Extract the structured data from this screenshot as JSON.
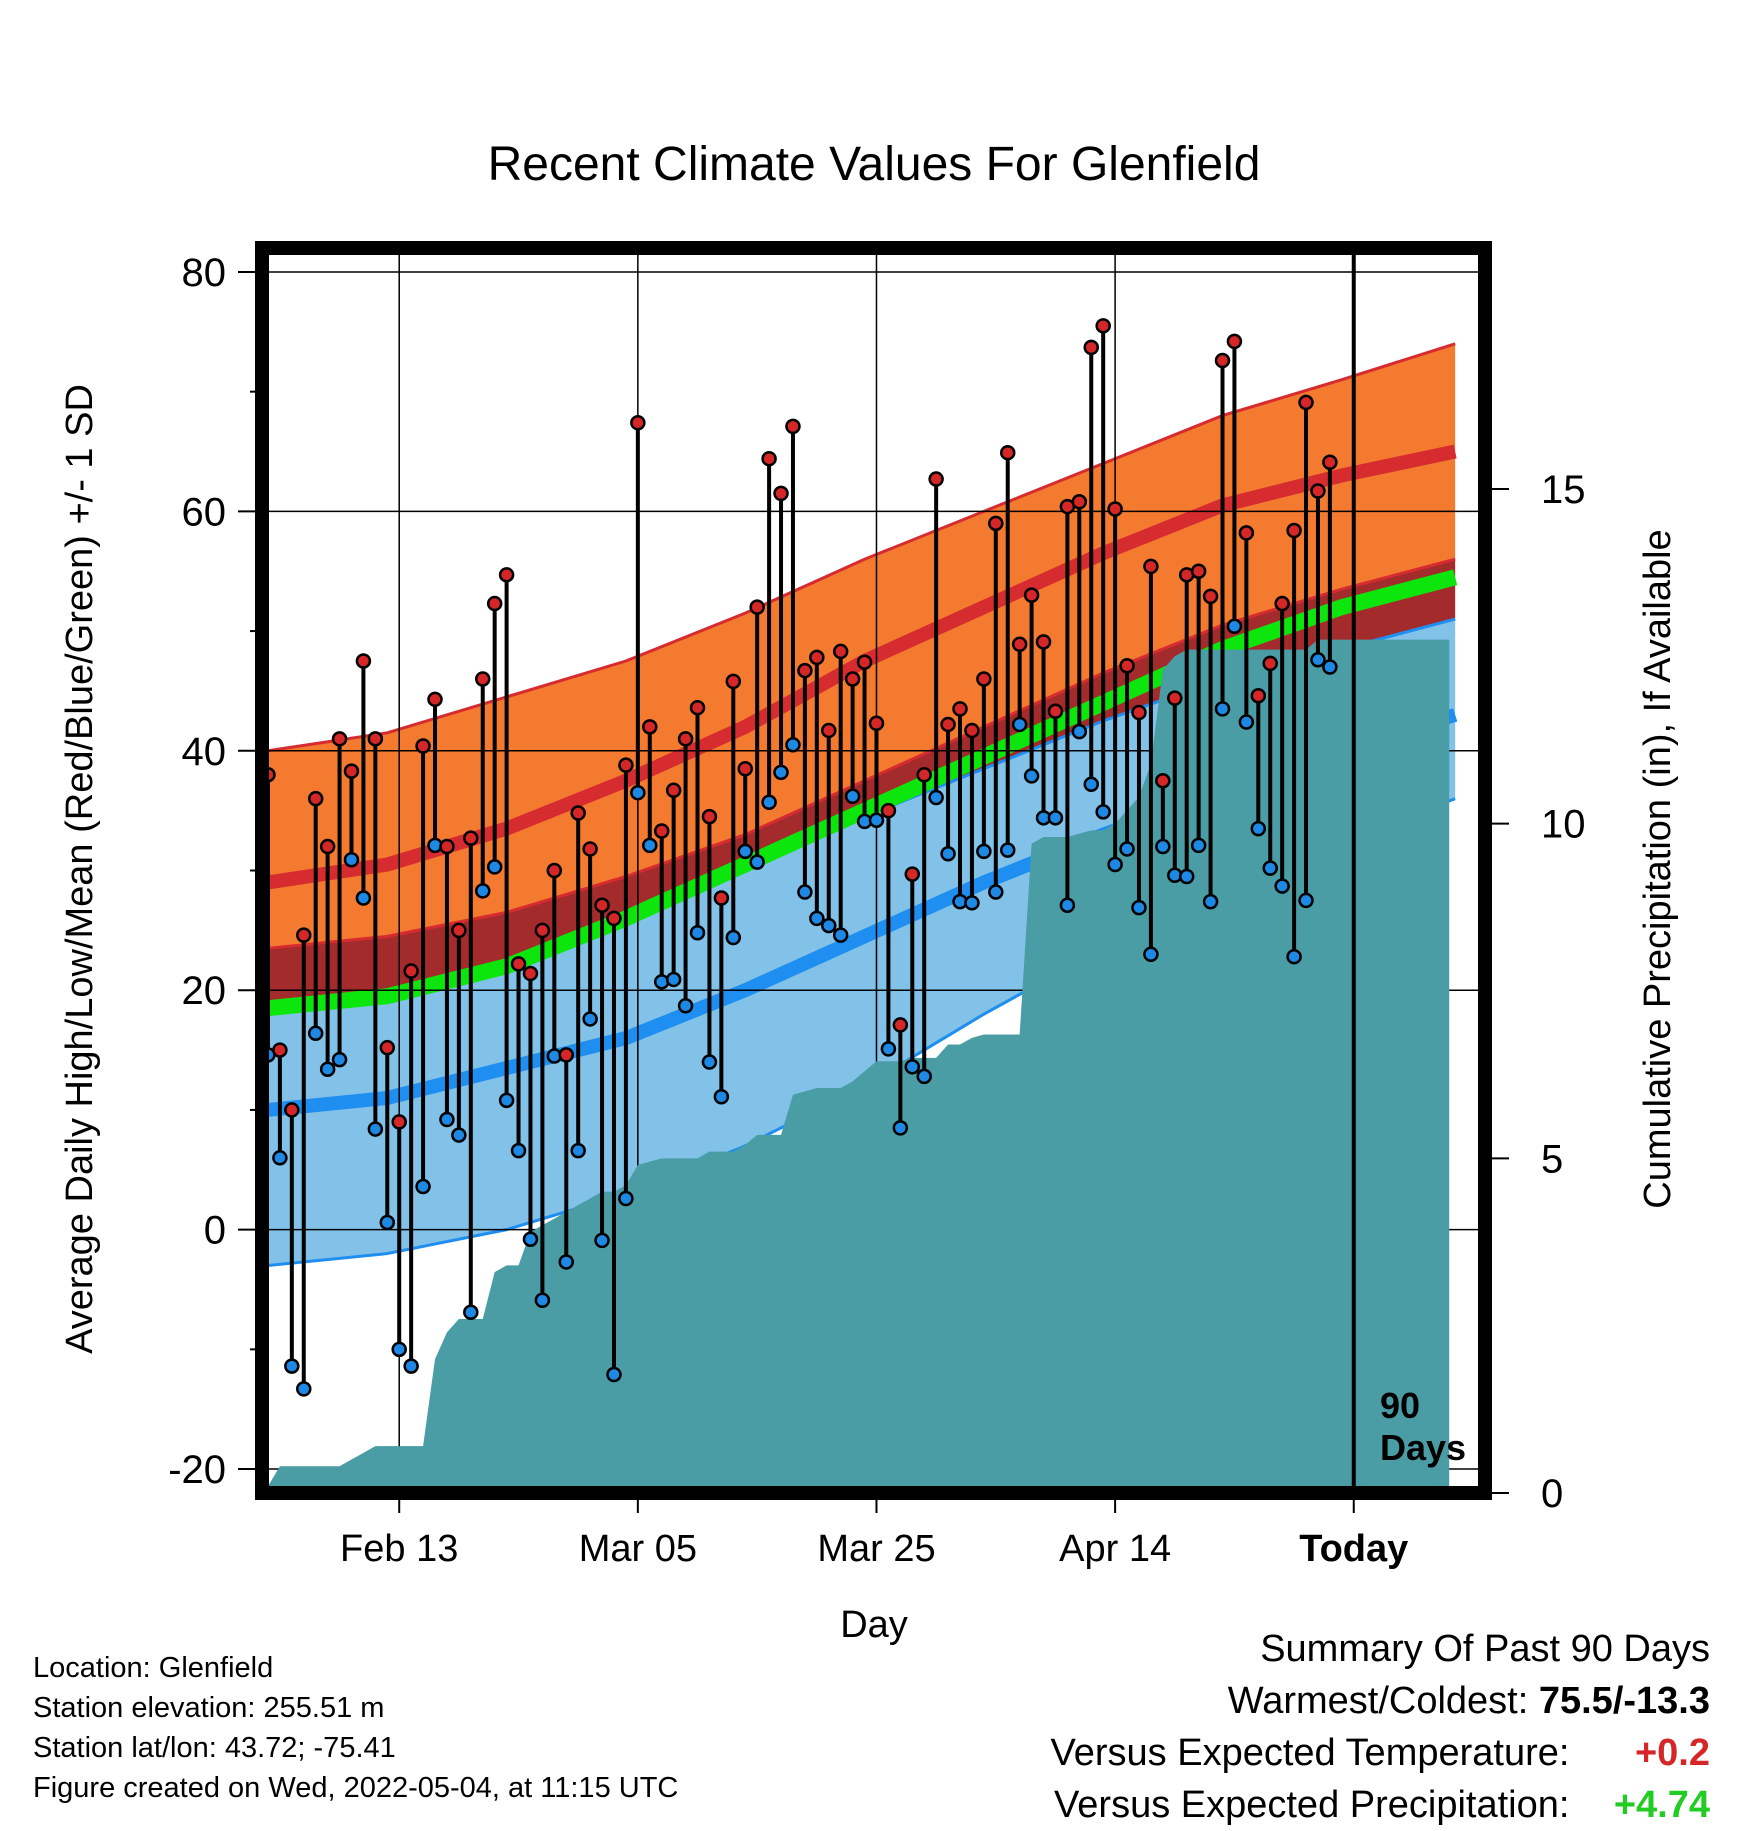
{
  "chart_data": {
    "type": "line",
    "title": "Recent Climate Values For Glenfield",
    "xlabel": "Day",
    "ylabel": "Average Daily High/Low/Mean (Red/Blue/Green) +/- 1 SD",
    "y2label": "Cumulative Precipitation (in), If Available",
    "ylim": [
      -22,
      82
    ],
    "y2lim": [
      0,
      18.6
    ],
    "xlim": [
      -0.5,
      102
    ],
    "grid": true,
    "x_ticks": [
      {
        "day": 11,
        "label": "Feb 13"
      },
      {
        "day": 31,
        "label": "Mar 05"
      },
      {
        "day": 51,
        "label": "Mar 25"
      },
      {
        "day": 71,
        "label": "Apr 14"
      },
      {
        "day": 91,
        "label": "Today"
      }
    ],
    "y_ticks": [
      -20,
      0,
      20,
      40,
      60,
      80
    ],
    "y2_ticks": [
      0,
      5,
      10,
      15
    ],
    "today_marker": {
      "day": 91,
      "label_line1": "90",
      "label_line2": "Days"
    },
    "normals": {
      "x": [
        0,
        10,
        20,
        30,
        40,
        50,
        60,
        70,
        80,
        90,
        99.5
      ],
      "high_mean": [
        29,
        30.5,
        33.5,
        37.5,
        42,
        47.5,
        52,
        56.5,
        60.5,
        63,
        65
      ],
      "high_upper": [
        40,
        41.5,
        44.5,
        47.5,
        51.5,
        56,
        60,
        64,
        68,
        71,
        74
      ],
      "high_lower": [
        23.5,
        24.5,
        26.5,
        29.5,
        33,
        37.5,
        42,
        46.5,
        50.5,
        53.5,
        56
      ],
      "mean": [
        18.5,
        19.5,
        22,
        26,
        30.5,
        35,
        39.5,
        44,
        48.5,
        52,
        54.5
      ],
      "low_mean": [
        10,
        11,
        13.5,
        16,
        20,
        24.5,
        29,
        33,
        36.5,
        40,
        43
      ],
      "low_upper": [
        18.5,
        20,
        22.5,
        26,
        30.5,
        34.5,
        38.5,
        42.5,
        46,
        48.5,
        51
      ],
      "low_lower": [
        -3,
        -2,
        0,
        3,
        7,
        12,
        18,
        23.5,
        28,
        32.5,
        36
      ]
    },
    "series": [
      {
        "name": "High",
        "color": "#d62728",
        "values": [
          38,
          15,
          10,
          24.6,
          36,
          32,
          41,
          38.3,
          47.5,
          41,
          15.2,
          9,
          21.6,
          40.4,
          44.3,
          32,
          25,
          32.7,
          46,
          52.3,
          54.7,
          22.2,
          21.4,
          25,
          30,
          14.6,
          34.8,
          31.8,
          27.1,
          26,
          38.8,
          67.4,
          42,
          33.3,
          36.7,
          41,
          43.6,
          34.5,
          27.7,
          45.8,
          38.5,
          52,
          64.4,
          61.5,
          67.1,
          46.7,
          47.8,
          41.7,
          48.3,
          46,
          47.4,
          42.3,
          35,
          17.1,
          29.7,
          38,
          62.7,
          42.2,
          43.5,
          41.7,
          46,
          59,
          64.9,
          48.9,
          53,
          49.1,
          43.3,
          60.4,
          60.8,
          73.7,
          75.5,
          60.2,
          47.1,
          43.2,
          55.4,
          37.5,
          44.4,
          54.7,
          55,
          52.9,
          72.6,
          74.2,
          58.2,
          44.6,
          47.3,
          52.3,
          58.4,
          69.1,
          61.7,
          64.1
        ]
      },
      {
        "name": "Low",
        "color": "#1e88e5",
        "values": [
          14.6,
          6,
          -11.4,
          -13.3,
          16.4,
          13.4,
          14.2,
          30.9,
          27.7,
          8.4,
          0.6,
          -10,
          -11.4,
          3.6,
          32.1,
          9.2,
          7.9,
          -6.9,
          28.3,
          30.3,
          10.8,
          6.6,
          -0.8,
          -5.9,
          14.5,
          -2.7,
          6.6,
          17.6,
          -0.9,
          -12.1,
          2.6,
          36.5,
          32.1,
          20.7,
          20.9,
          18.7,
          24.8,
          14,
          11.1,
          24.4,
          31.6,
          30.7,
          35.7,
          38.2,
          40.5,
          28.2,
          26,
          25.4,
          24.6,
          36.2,
          34.1,
          34.2,
          15.1,
          8.5,
          13.6,
          12.8,
          36.1,
          31.4,
          27.4,
          27.3,
          31.6,
          28.2,
          31.7,
          42.2,
          37.9,
          34.4,
          34.4,
          27.1,
          41.6,
          37.2,
          34.9,
          30.5,
          31.8,
          26.9,
          23,
          32,
          29.6,
          29.5,
          32.1,
          27.4,
          43.5,
          50.4,
          42.4,
          33.5,
          30.2,
          28.7,
          22.8,
          27.5,
          47.6,
          47
        ]
      },
      {
        "name": "Cumulative Precipitation",
        "color": "#4a9ca5",
        "values": [
          0.1,
          0.4,
          0.4,
          0.4,
          0.4,
          0.4,
          0.4,
          0.5,
          0.6,
          0.7,
          0.7,
          0.7,
          0.7,
          0.7,
          2.0,
          2.4,
          2.6,
          2.6,
          2.6,
          3.3,
          3.4,
          3.4,
          3.9,
          4.0,
          4.1,
          4.2,
          4.3,
          4.4,
          4.5,
          4.5,
          4.6,
          4.9,
          4.95,
          5.0,
          5.0,
          5.0,
          5.0,
          5.1,
          5.1,
          5.1,
          5.2,
          5.35,
          5.35,
          5.35,
          5.95,
          6.0,
          6.05,
          6.05,
          6.05,
          6.15,
          6.3,
          6.45,
          6.45,
          6.45,
          6.5,
          6.5,
          6.5,
          6.7,
          6.7,
          6.8,
          6.85,
          6.85,
          6.85,
          6.85,
          9.7,
          9.8,
          9.8,
          9.8,
          9.85,
          9.9,
          9.9,
          10.0,
          10.2,
          10.4,
          10.9,
          12.3,
          12.5,
          12.6,
          12.6,
          12.6,
          12.6,
          12.6,
          12.6,
          12.6,
          12.6,
          12.6,
          12.6,
          12.6,
          12.75,
          12.75,
          12.75,
          12.75,
          12.75,
          12.75,
          12.75,
          12.75,
          12.75,
          12.75,
          12.75,
          12.75
        ]
      }
    ]
  },
  "colors": {
    "high_band": "#f47a30",
    "high_mean_line": "#d62b2f",
    "low_band": "#82c2e8",
    "low_mean_line": "#1e8ef0",
    "mean_band": "#0ce60c",
    "overlap": "#9a1414",
    "precip": "#4a9ca5",
    "positive_temp": "#d62728",
    "positive_precip": "#22cc22"
  },
  "footer": {
    "location": "Location: Glenfield",
    "elevation": "Station elevation: 255.51 m",
    "latlon": "Station lat/lon: 43.72; -75.41",
    "created": "Figure created on Wed, 2022-05-04, at 11:15 UTC"
  },
  "summary": {
    "title": "Summary Of Past 90 Days",
    "warm_cold_label": "Warmest/Coldest:",
    "warm_cold_value": "75.5/-13.3",
    "temp_label": "Versus Expected Temperature:",
    "temp_value": "+0.2",
    "precip_label": "Versus Expected Precipitation:",
    "precip_value": "+4.74"
  }
}
